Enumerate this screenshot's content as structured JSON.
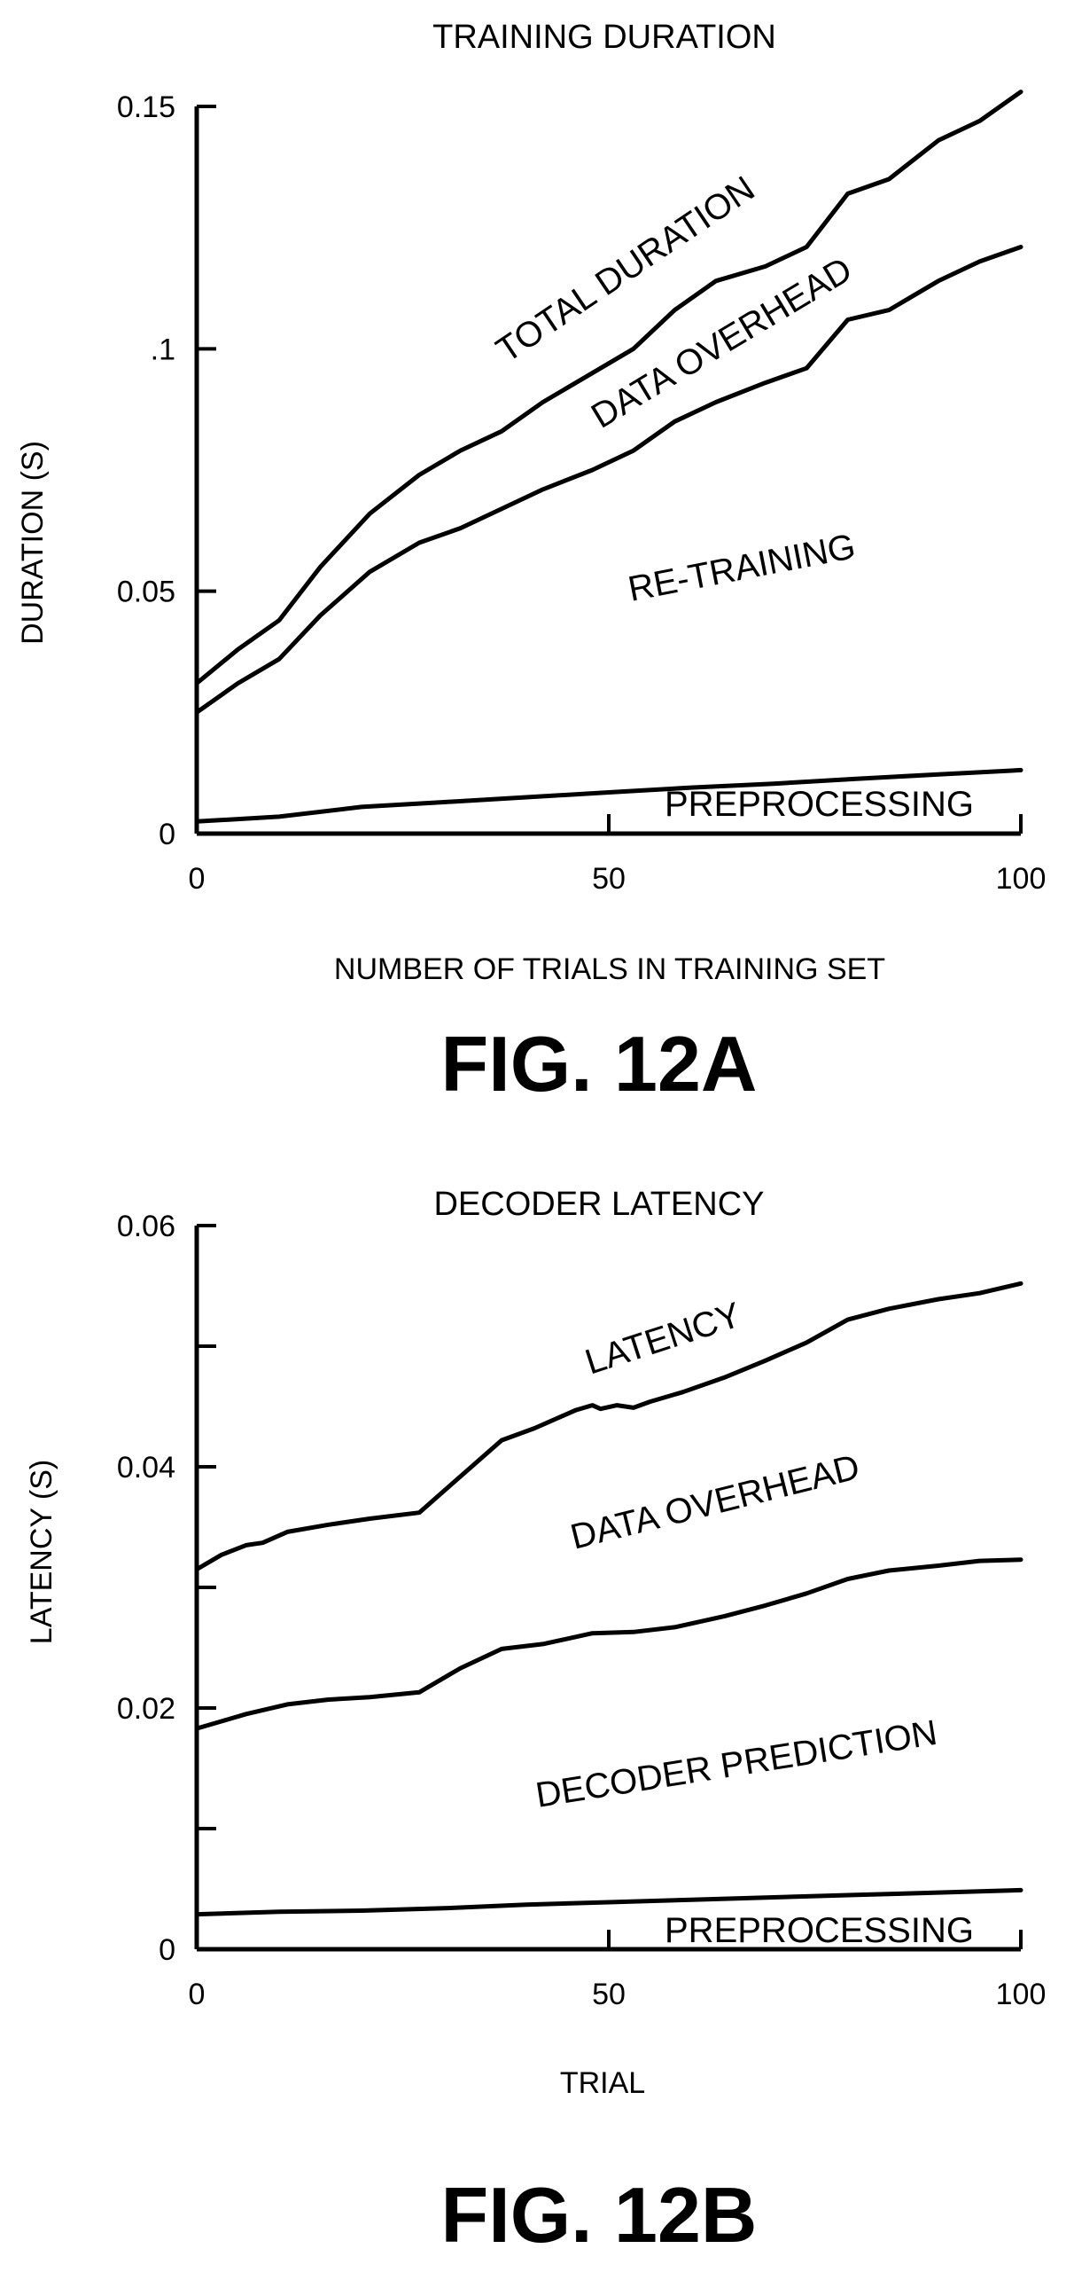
{
  "chart_data": [
    {
      "type": "line",
      "title": "TRAINING DURATION",
      "xlabel": "NUMBER OF TRIALS IN TRAINING SET",
      "ylabel": "DURATION (S)",
      "figure_label": "FIG. 12A",
      "xlim": [
        0,
        100
      ],
      "ylim": [
        0,
        0.15
      ],
      "x_ticks": [
        0,
        50,
        100
      ],
      "x_tick_labels": [
        "0",
        "50",
        "100"
      ],
      "y_ticks": [
        0,
        0.05,
        0.1,
        0.15
      ],
      "y_tick_labels": [
        "0",
        "0.05",
        ".1",
        "0.15"
      ],
      "grid": false,
      "series": [
        {
          "name": "TOTAL DURATION",
          "x": [
            0,
            5,
            10,
            15,
            21,
            27,
            32,
            37,
            42,
            48,
            53,
            58,
            63,
            69,
            74,
            79,
            84,
            90,
            95,
            100
          ],
          "y": [
            0.031,
            0.038,
            0.044,
            0.055,
            0.066,
            0.074,
            0.079,
            0.083,
            0.089,
            0.095,
            0.1,
            0.108,
            0.114,
            0.117,
            0.121,
            0.132,
            0.135,
            0.143,
            0.147,
            0.153
          ]
        },
        {
          "name": "DATA OVERHEAD",
          "x": [
            0,
            5,
            10,
            15,
            21,
            27,
            32,
            37,
            42,
            48,
            53,
            58,
            63,
            69,
            74,
            79,
            84,
            90,
            95,
            100
          ],
          "y": [
            0.025,
            0.031,
            0.036,
            0.045,
            0.054,
            0.06,
            0.063,
            0.067,
            0.071,
            0.075,
            0.079,
            0.085,
            0.089,
            0.093,
            0.096,
            0.106,
            0.108,
            0.114,
            0.118,
            0.121
          ]
        },
        {
          "name": "PREPROCESSING",
          "x": [
            0,
            10,
            20,
            30,
            40,
            50,
            60,
            70,
            80,
            90,
            100
          ],
          "y": [
            0.0025,
            0.0035,
            0.0055,
            0.0065,
            0.0075,
            0.0085,
            0.0095,
            0.0103,
            0.0113,
            0.0122,
            0.0131
          ]
        }
      ],
      "annotations": [
        "TOTAL DURATION",
        "DATA OVERHEAD",
        "RE-TRAINING",
        "PREPROCESSING"
      ]
    },
    {
      "type": "line",
      "title": "DECODER LATENCY",
      "xlabel": "TRIAL",
      "ylabel": "LATENCY (S)",
      "figure_label": "FIG. 12B",
      "xlim": [
        0,
        100
      ],
      "ylim": [
        0,
        0.06
      ],
      "x_ticks": [
        0,
        50,
        100
      ],
      "x_tick_labels": [
        "0",
        "50",
        "100"
      ],
      "y_ticks": [
        0,
        0.01,
        0.02,
        0.03,
        0.04,
        0.05,
        0.06
      ],
      "y_tick_labels": [
        "0",
        "",
        "0.02",
        "",
        "0.04",
        "",
        "0.06"
      ],
      "grid": false,
      "series": [
        {
          "name": "LATENCY",
          "x": [
            0,
            3,
            6,
            8,
            11,
            16,
            21,
            27,
            32,
            37,
            41,
            46,
            48,
            49,
            51,
            53,
            55,
            59,
            64,
            69,
            74,
            79,
            84,
            90,
            95,
            100
          ],
          "y": [
            0.0315,
            0.0327,
            0.0335,
            0.0337,
            0.0346,
            0.0352,
            0.0357,
            0.0362,
            0.0392,
            0.0422,
            0.0432,
            0.0447,
            0.0451,
            0.0448,
            0.0451,
            0.0449,
            0.0454,
            0.0462,
            0.0474,
            0.0488,
            0.0503,
            0.0522,
            0.0531,
            0.0539,
            0.0544,
            0.0552
          ]
        },
        {
          "name": "DATA OVERHEAD",
          "x": [
            0,
            3,
            6,
            11,
            16,
            21,
            27,
            32,
            37,
            42,
            46,
            48,
            53,
            58,
            64,
            69,
            74,
            79,
            84,
            90,
            95,
            100
          ],
          "y": [
            0.0183,
            0.0189,
            0.0195,
            0.0203,
            0.0207,
            0.0209,
            0.0213,
            0.0233,
            0.0249,
            0.0253,
            0.0259,
            0.0262,
            0.0263,
            0.0267,
            0.0276,
            0.0285,
            0.0295,
            0.0307,
            0.0314,
            0.0318,
            0.0322,
            0.0323
          ]
        },
        {
          "name": "PREPROCESSING",
          "x": [
            0,
            10,
            20,
            30,
            40,
            50,
            60,
            70,
            80,
            90,
            100
          ],
          "y": [
            0.0029,
            0.0031,
            0.0032,
            0.0034,
            0.0037,
            0.0039,
            0.0041,
            0.0043,
            0.0045,
            0.0047,
            0.0049
          ]
        }
      ],
      "annotations": [
        "LATENCY",
        "DATA OVERHEAD",
        "DECODER PREDICTION",
        "PREPROCESSING"
      ]
    }
  ]
}
